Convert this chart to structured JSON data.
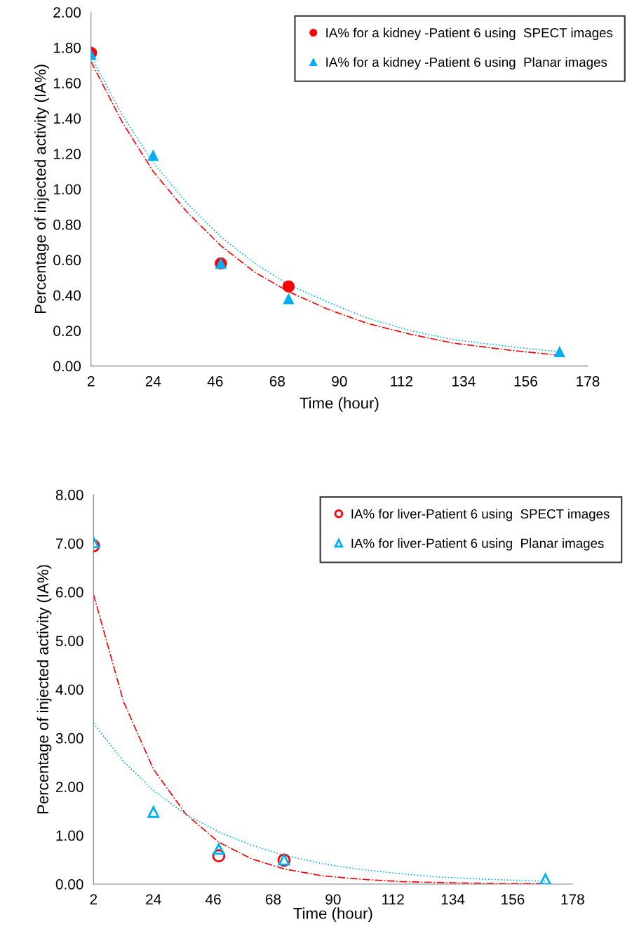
{
  "chart_data": [
    {
      "type": "scatter",
      "xlabel": "Time (hour)",
      "ylabel": "Percentage of injected activity (IA%)",
      "xlim": [
        2,
        178
      ],
      "xticks": [
        2,
        24,
        46,
        68,
        90,
        112,
        134,
        156,
        178
      ],
      "ylim": [
        0,
        2
      ],
      "yticks": [
        {
          "value": 0,
          "label": "0.00"
        },
        {
          "value": 0.2,
          "label": "0.20"
        },
        {
          "value": 0.4,
          "label": "0.40"
        },
        {
          "value": 0.6,
          "label": "0.60"
        },
        {
          "value": 0.8,
          "label": "0.80"
        },
        {
          "value": 1.0,
          "label": "1.00"
        },
        {
          "value": 1.2,
          "label": "1.20"
        },
        {
          "value": 1.4,
          "label": "1.40"
        },
        {
          "value": 1.6,
          "label": "1.60"
        },
        {
          "value": 1.8,
          "label": "1.80"
        },
        {
          "value": 2.0,
          "label": "2.00"
        }
      ],
      "grid": false,
      "legend": "top right",
      "series": [
        {
          "name": "IA% for a kidney -Patient 6 using  SPECT images",
          "color": "#ff0000",
          "marker": "circle",
          "x": [
            2,
            48,
            72
          ],
          "values": [
            1.77,
            0.58,
            0.45
          ]
        },
        {
          "name": "IA% for a kidney -Patient 6 using  Planar images",
          "color": "#00b0f0",
          "marker": "triangle",
          "x": [
            2,
            24,
            48,
            72,
            168
          ],
          "values": [
            1.76,
            1.19,
            0.58,
            0.38,
            0.08
          ]
        },
        {
          "type": "line",
          "color": "#ff0000",
          "line_style": "dashdot",
          "x": [
            2,
            13,
            24,
            36,
            48,
            60,
            72,
            86,
            100,
            115,
            130,
            150,
            168
          ],
          "values": [
            1.72,
            1.38,
            1.1,
            0.87,
            0.68,
            0.53,
            0.42,
            0.32,
            0.24,
            0.18,
            0.13,
            0.09,
            0.06
          ]
        },
        {
          "type": "line",
          "color": "#00b0f0",
          "line_style": "dotted",
          "x": [
            2,
            13,
            24,
            36,
            48,
            60,
            72,
            86,
            100,
            115,
            130,
            150,
            168
          ],
          "values": [
            1.75,
            1.42,
            1.15,
            0.92,
            0.73,
            0.58,
            0.46,
            0.36,
            0.27,
            0.2,
            0.15,
            0.11,
            0.08
          ]
        }
      ]
    },
    {
      "type": "scatter",
      "xlabel": "Time (hour)",
      "ylabel": "Percentage of injected activity (IA%)",
      "xlim": [
        2,
        178
      ],
      "xticks": [
        2,
        24,
        46,
        68,
        90,
        112,
        134,
        156,
        178
      ],
      "ylim": [
        0,
        8
      ],
      "yticks": [
        {
          "value": 0,
          "label": "0.00"
        },
        {
          "value": 1,
          "label": "1.00"
        },
        {
          "value": 2,
          "label": "2.00"
        },
        {
          "value": 3,
          "label": "3.00"
        },
        {
          "value": 4,
          "label": "4.00"
        },
        {
          "value": 5,
          "label": "5.00"
        },
        {
          "value": 6,
          "label": "6.00"
        },
        {
          "value": 7,
          "label": "7.00"
        },
        {
          "value": 8,
          "label": "8.00"
        }
      ],
      "grid": false,
      "legend": "top right",
      "series": [
        {
          "name": "IA% for liver-Patient 6 using  SPECT images",
          "color": "#ff0000",
          "marker": "circle",
          "x": [
            2,
            48,
            72
          ],
          "values": [
            6.95,
            0.58,
            0.49
          ]
        },
        {
          "name": "IA% for liver-Patient 6 using  Planar images",
          "color": "#00b0f0",
          "marker": "triangle",
          "x": [
            2,
            24,
            48,
            72,
            168
          ],
          "values": [
            7.02,
            1.48,
            0.72,
            0.5,
            0.1
          ]
        },
        {
          "type": "line",
          "color": "#ff0000",
          "line_style": "dashdot",
          "x": [
            2,
            13,
            24,
            36,
            48,
            60,
            72,
            86,
            100,
            115,
            130,
            150,
            168
          ],
          "values": [
            5.95,
            3.75,
            2.36,
            1.43,
            0.86,
            0.52,
            0.31,
            0.17,
            0.1,
            0.05,
            0.03,
            0.01,
            0.01
          ]
        },
        {
          "type": "line",
          "color": "#00b0f0",
          "line_style": "dotted",
          "x": [
            2,
            13,
            24,
            36,
            48,
            60,
            72,
            86,
            100,
            115,
            130,
            150,
            168
          ],
          "values": [
            3.3,
            2.52,
            1.92,
            1.43,
            1.07,
            0.8,
            0.59,
            0.42,
            0.3,
            0.21,
            0.14,
            0.09,
            0.06
          ]
        }
      ]
    }
  ]
}
